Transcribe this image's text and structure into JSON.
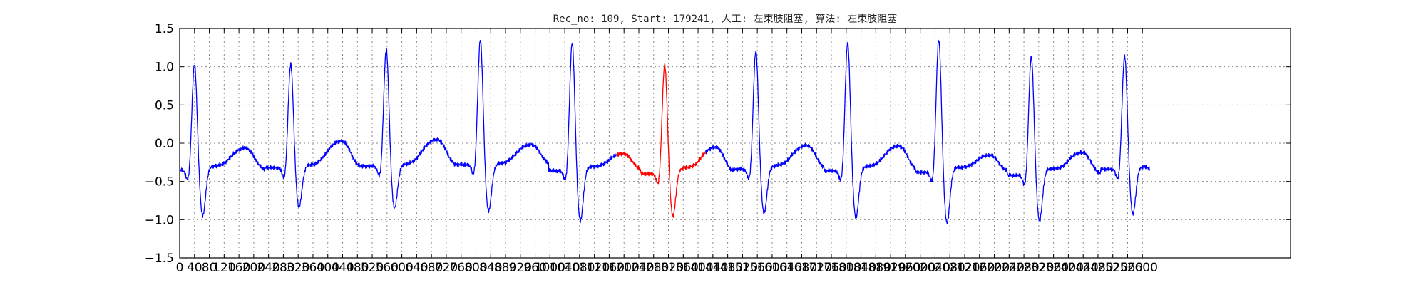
{
  "chart_data": {
    "type": "line",
    "title": "Rec_no: 109, Start: 179241, 人工: 左束肢阻塞, 算法: 左束肢阻塞",
    "xlabel": "",
    "ylabel": "",
    "xlim": [
      0,
      3000
    ],
    "ylim": [
      -1.5,
      1.5
    ],
    "grid": true,
    "x_ticks": [
      0,
      40,
      80,
      120,
      160,
      200,
      240,
      280,
      320,
      360,
      400,
      440,
      480,
      520,
      560,
      600,
      640,
      680,
      720,
      760,
      800,
      840,
      880,
      920,
      960,
      1000,
      1040,
      1080,
      1120,
      1160,
      1200,
      1240,
      1280,
      1320,
      1360,
      1400,
      1440,
      1480,
      1520,
      1560,
      1600,
      1640,
      1680,
      1720,
      1760,
      1800,
      1840,
      1880,
      1920,
      1960,
      2000,
      2040,
      2080,
      2120,
      2160,
      2200,
      2240,
      2280,
      2320,
      2360,
      2400,
      2440,
      2480,
      2520,
      2560,
      2600
    ],
    "x_tick_labels": [
      "0",
      "40",
      "80",
      "120",
      "160",
      "200",
      "240",
      "280",
      "320",
      "360",
      "400",
      "440",
      "480",
      "520",
      "560",
      "600",
      "640",
      "680",
      "720",
      "760",
      "800",
      "840",
      "880",
      "920",
      "960",
      "1000",
      "1040",
      "1080",
      "1120",
      "1160",
      "1200",
      "1240",
      "1280",
      "1320",
      "1360",
      "1400",
      "1440",
      "1480",
      "1520",
      "1560",
      "1600",
      "1640",
      "1680",
      "1720",
      "1760",
      "1800",
      "1840",
      "1880",
      "1920",
      "1960",
      "2000",
      "2040",
      "2080",
      "2120",
      "2160",
      "2200",
      "2240",
      "2280",
      "2320",
      "2360",
      "2400",
      "2440",
      "2480",
      "2520",
      "2560",
      "2600"
    ],
    "y_ticks": [
      1.5,
      1.0,
      0.5,
      0.0,
      -0.5,
      -1.0,
      -1.5
    ],
    "y_tick_labels": [
      "1.5",
      "1.0",
      "0.5",
      "0.0",
      "−0.5",
      "−1.0",
      "−1.5"
    ],
    "beats": [
      {
        "r_x": 40,
        "peak": 1.05,
        "trough": -0.96,
        "baseline": -0.35,
        "t_level": -0.12
      },
      {
        "r_x": 300,
        "peak": 1.05,
        "trough": -0.85,
        "baseline": -0.32,
        "t_level": -0.04
      },
      {
        "r_x": 558,
        "peak": 1.24,
        "trough": -0.86,
        "baseline": -0.3,
        "t_level": -0.02
      },
      {
        "r_x": 812,
        "peak": 1.37,
        "trough": -0.9,
        "baseline": -0.28,
        "t_level": -0.07
      },
      {
        "r_x": 1060,
        "peak": 1.33,
        "trough": -1.03,
        "baseline": -0.36,
        "t_level": -0.18
      },
      {
        "r_x": 1310,
        "peak": 1.04,
        "trough": -0.97,
        "baseline": -0.4,
        "t_level": -0.12
      },
      {
        "r_x": 1556,
        "peak": 1.22,
        "trough": -0.93,
        "baseline": -0.34,
        "t_level": -0.09
      },
      {
        "r_x": 1804,
        "peak": 1.33,
        "trough": -0.99,
        "baseline": -0.36,
        "t_level": -0.1
      },
      {
        "r_x": 2050,
        "peak": 1.37,
        "trough": -1.06,
        "baseline": -0.38,
        "t_level": -0.2
      },
      {
        "r_x": 2300,
        "peak": 1.15,
        "trough": -1.03,
        "baseline": -0.42,
        "t_level": -0.18
      },
      {
        "r_x": 2552,
        "peak": 1.16,
        "trough": -0.94,
        "baseline": -0.34,
        "t_level": -0.5
      }
    ],
    "x_start": 0,
    "x_end": 2620,
    "highlight_range": [
      1180,
      1420
    ],
    "colors": {
      "normal": "#0000ff",
      "highlight": "#ff0000",
      "grid": "#8a8a8a",
      "axes": "#000000"
    }
  }
}
